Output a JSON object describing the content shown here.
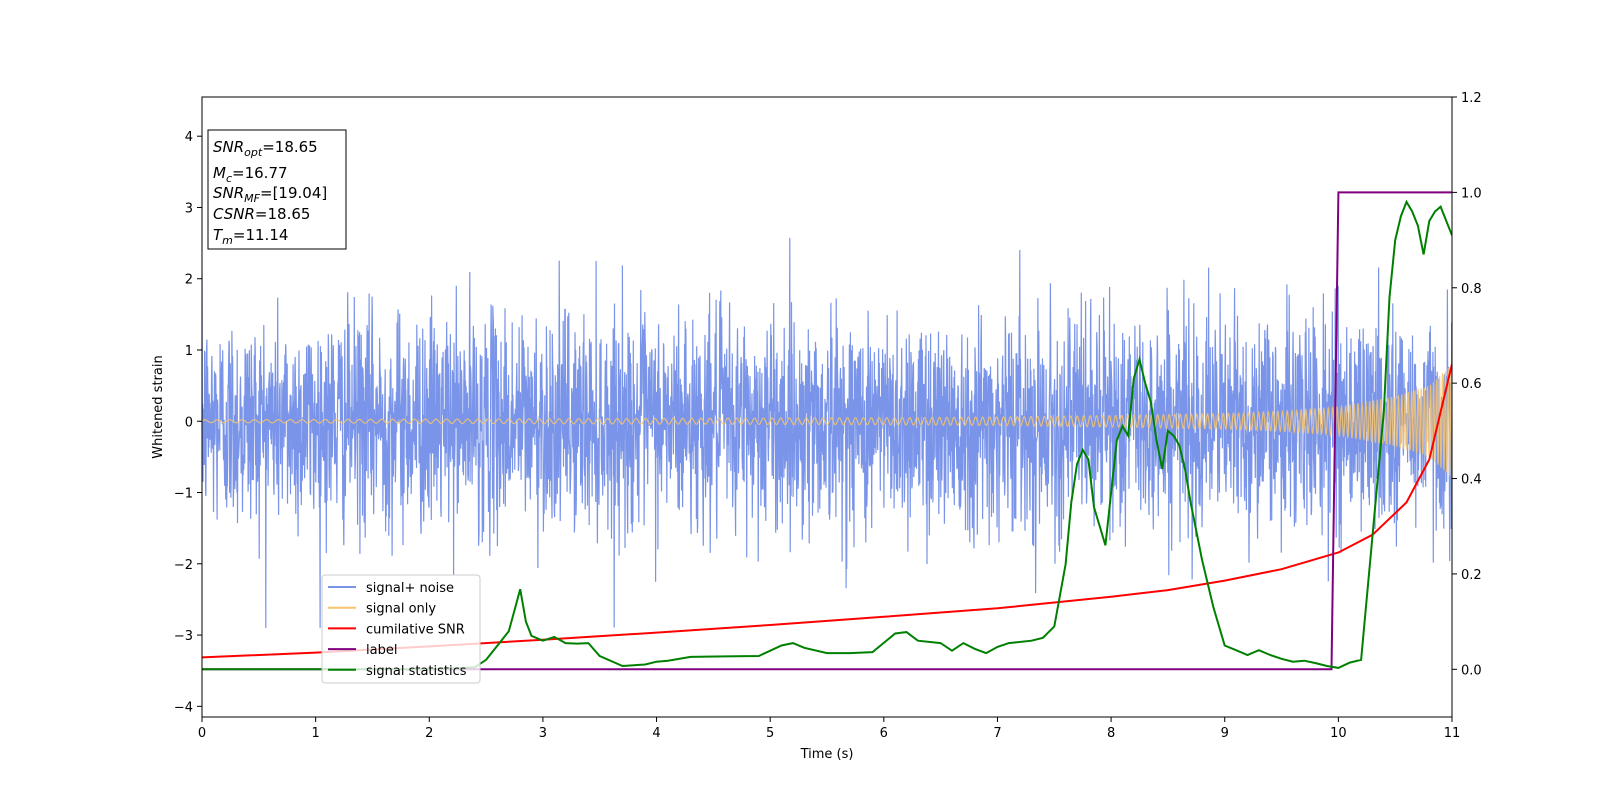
{
  "chart_data": {
    "type": "line",
    "title": "",
    "xlabel": "Time (s)",
    "ylabel": "Whitened strain",
    "y2label": "",
    "xlim": [
      0,
      11
    ],
    "ylim": [
      -4.15,
      4.55
    ],
    "y2lim": [
      -0.1,
      1.2
    ],
    "xticks": [
      0,
      1,
      2,
      3,
      4,
      5,
      6,
      7,
      8,
      9,
      10,
      11
    ],
    "yticks": [
      -4,
      -3,
      -2,
      -1,
      0,
      1,
      2,
      3,
      4
    ],
    "y2ticks": [
      0.0,
      0.2,
      0.4,
      0.6,
      0.8,
      1.0,
      1.2
    ],
    "y2tick_labels": [
      "0.0",
      "0.2",
      "0.4",
      "0.6",
      "0.8",
      "1.0",
      "1.2"
    ],
    "grid": false,
    "legend_position": "lower-left",
    "legend": [
      {
        "label": "signal+ noise",
        "color": "#7994e8"
      },
      {
        "label": "signal only",
        "color": "#f7c46c"
      },
      {
        "label": "cumilative SNR",
        "color": "#ff0000"
      },
      {
        "label": "label",
        "color": "#800080"
      },
      {
        "label": "signal statistics",
        "color": "#008000"
      }
    ],
    "annotation": [
      {
        "sym": "SNR",
        "sub": "opt",
        "value": "=18.65"
      },
      {
        "sym": "M",
        "sub": "c",
        "value": "=16.77"
      },
      {
        "sym": "SNR",
        "sub": "MF",
        "value": "=[19.04]"
      },
      {
        "sym": "CSNR",
        "sub": "",
        "value": "=18.65"
      },
      {
        "sym": "T",
        "sub": "m",
        "value": "=11.14"
      }
    ],
    "series": [
      {
        "name": "signal+ noise",
        "axis": "left",
        "color": "#7994e8",
        "style": "dense noise band",
        "sigma": 0.75,
        "envelope_typical": [
          -1.6,
          1.6
        ],
        "envelope_peaks": [
          -2.9,
          2.6
        ]
      },
      {
        "name": "signal only",
        "axis": "left",
        "color": "#f7c46c",
        "style": "chirp",
        "amplitude": {
          "x": [
            0,
            2,
            4,
            6,
            7,
            8,
            9,
            9.5,
            10,
            10.5,
            10.8,
            11
          ],
          "y": [
            0.02,
            0.03,
            0.04,
            0.05,
            0.06,
            0.08,
            0.11,
            0.14,
            0.2,
            0.35,
            0.5,
            0.8
          ]
        },
        "frequency_hz": {
          "x": [
            0,
            5,
            8,
            10,
            11
          ],
          "y": [
            9,
            13,
            18,
            26,
            40
          ]
        }
      },
      {
        "name": "cumilative SNR",
        "axis": "right",
        "color": "#ff0000",
        "x": [
          0,
          1,
          2,
          3,
          4,
          5,
          6,
          7,
          8,
          8.5,
          9,
          9.5,
          10,
          10.3,
          10.6,
          10.8,
          11
        ],
        "y": [
          0.025,
          0.035,
          0.048,
          0.062,
          0.077,
          0.093,
          0.11,
          0.128,
          0.152,
          0.166,
          0.186,
          0.21,
          0.245,
          0.282,
          0.35,
          0.44,
          0.64
        ]
      },
      {
        "name": "label",
        "axis": "right",
        "color": "#800080",
        "x": [
          0,
          9.94,
          10.0,
          11
        ],
        "y": [
          0,
          0,
          1,
          1
        ]
      },
      {
        "name": "signal statistics",
        "axis": "right",
        "color": "#008000",
        "x": [
          0,
          2.0,
          2.4,
          2.5,
          2.6,
          2.7,
          2.8,
          2.85,
          2.9,
          3.0,
          3.1,
          3.2,
          3.3,
          3.4,
          3.5,
          3.7,
          3.9,
          4.0,
          4.1,
          4.3,
          4.6,
          4.9,
          5.1,
          5.2,
          5.3,
          5.5,
          5.7,
          5.9,
          6.1,
          6.2,
          6.3,
          6.5,
          6.6,
          6.7,
          6.8,
          6.9,
          7.0,
          7.1,
          7.3,
          7.4,
          7.5,
          7.6,
          7.65,
          7.7,
          7.75,
          7.8,
          7.85,
          7.9,
          7.95,
          8.0,
          8.05,
          8.1,
          8.15,
          8.2,
          8.25,
          8.3,
          8.35,
          8.4,
          8.45,
          8.5,
          8.55,
          8.6,
          8.65,
          8.7,
          8.8,
          8.9,
          9.0,
          9.1,
          9.2,
          9.3,
          9.4,
          9.5,
          9.6,
          9.7,
          9.8,
          9.9,
          10.0,
          10.1,
          10.2,
          10.3,
          10.4,
          10.45,
          10.5,
          10.55,
          10.6,
          10.65,
          10.7,
          10.75,
          10.8,
          10.85,
          10.9,
          10.95,
          11.0
        ],
        "y": [
          0.0,
          0.0,
          0.004,
          0.02,
          0.05,
          0.08,
          0.168,
          0.1,
          0.07,
          0.06,
          0.068,
          0.055,
          0.054,
          0.055,
          0.028,
          0.007,
          0.01,
          0.016,
          0.018,
          0.026,
          0.027,
          0.028,
          0.05,
          0.055,
          0.045,
          0.034,
          0.034,
          0.036,
          0.075,
          0.078,
          0.06,
          0.055,
          0.039,
          0.055,
          0.043,
          0.034,
          0.047,
          0.055,
          0.06,
          0.066,
          0.09,
          0.22,
          0.35,
          0.43,
          0.46,
          0.44,
          0.34,
          0.3,
          0.26,
          0.37,
          0.48,
          0.51,
          0.49,
          0.61,
          0.65,
          0.6,
          0.56,
          0.48,
          0.42,
          0.5,
          0.49,
          0.47,
          0.42,
          0.35,
          0.23,
          0.13,
          0.05,
          0.04,
          0.03,
          0.04,
          0.03,
          0.022,
          0.016,
          0.018,
          0.013,
          0.007,
          0.003,
          0.014,
          0.02,
          0.28,
          0.54,
          0.78,
          0.9,
          0.95,
          0.98,
          0.96,
          0.93,
          0.87,
          0.94,
          0.96,
          0.97,
          0.94,
          0.91
        ]
      }
    ]
  }
}
